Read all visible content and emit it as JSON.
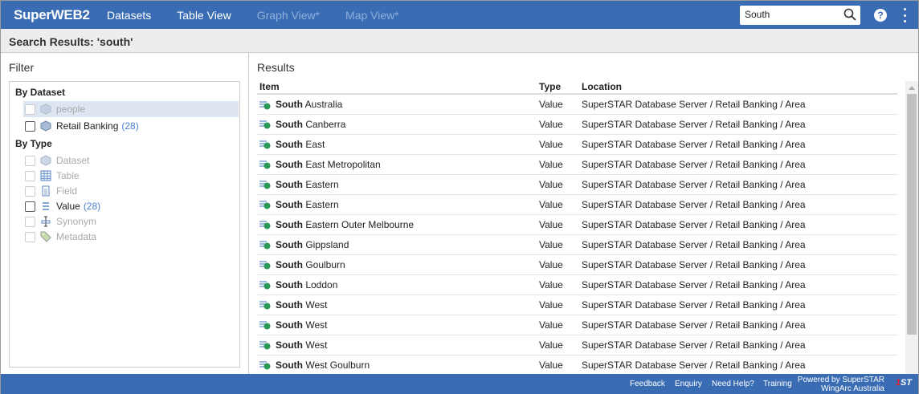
{
  "header": {
    "logo": "SuperWEB2",
    "nav": [
      {
        "label": "Datasets",
        "enabled": true
      },
      {
        "label": "Table View",
        "enabled": true
      },
      {
        "label": "Graph View*",
        "enabled": false
      },
      {
        "label": "Map View*",
        "enabled": false
      }
    ],
    "search_value": "South",
    "help_icon": "?"
  },
  "subheader": {
    "title": "Search Results: 'south'"
  },
  "filter": {
    "title": "Filter",
    "by_dataset": "By Dataset",
    "datasets": [
      {
        "label": "people",
        "count": "",
        "disabled": true
      },
      {
        "label": "Retail Banking",
        "count": "(28)",
        "disabled": false
      }
    ],
    "by_type": "By Type",
    "types": [
      {
        "label": "Dataset",
        "count": "",
        "icon": "cube-icon",
        "disabled": true
      },
      {
        "label": "Table",
        "count": "",
        "icon": "table-icon",
        "disabled": true
      },
      {
        "label": "Field",
        "count": "",
        "icon": "field-icon",
        "disabled": true
      },
      {
        "label": "Value",
        "count": "(28)",
        "icon": "value-icon",
        "disabled": false
      },
      {
        "label": "Synonym",
        "count": "",
        "icon": "synonym-icon",
        "disabled": true
      },
      {
        "label": "Metadata",
        "count": "",
        "icon": "tag-icon",
        "disabled": true
      }
    ]
  },
  "results": {
    "title": "Results",
    "columns": [
      "Item",
      "Type",
      "Location"
    ],
    "rows": [
      {
        "bold": "South",
        "rest": " Australia",
        "type": "Value",
        "location": "SuperSTAR Database Server / Retail Banking / Area"
      },
      {
        "bold": "South",
        "rest": " Canberra",
        "type": "Value",
        "location": "SuperSTAR Database Server / Retail Banking / Area"
      },
      {
        "bold": "South",
        "rest": " East",
        "type": "Value",
        "location": "SuperSTAR Database Server / Retail Banking / Area"
      },
      {
        "bold": "South",
        "rest": " East Metropolitan",
        "type": "Value",
        "location": "SuperSTAR Database Server / Retail Banking / Area"
      },
      {
        "bold": "South",
        "rest": " Eastern",
        "type": "Value",
        "location": "SuperSTAR Database Server / Retail Banking / Area"
      },
      {
        "bold": "South",
        "rest": " Eastern",
        "type": "Value",
        "location": "SuperSTAR Database Server / Retail Banking / Area"
      },
      {
        "bold": "South",
        "rest": " Eastern Outer Melbourne",
        "type": "Value",
        "location": "SuperSTAR Database Server / Retail Banking / Area"
      },
      {
        "bold": "South",
        "rest": " Gippsland",
        "type": "Value",
        "location": "SuperSTAR Database Server / Retail Banking / Area"
      },
      {
        "bold": "South",
        "rest": " Goulburn",
        "type": "Value",
        "location": "SuperSTAR Database Server / Retail Banking / Area"
      },
      {
        "bold": "South",
        "rest": " Loddon",
        "type": "Value",
        "location": "SuperSTAR Database Server / Retail Banking / Area"
      },
      {
        "bold": "South",
        "rest": " West",
        "type": "Value",
        "location": "SuperSTAR Database Server / Retail Banking / Area"
      },
      {
        "bold": "South",
        "rest": " West",
        "type": "Value",
        "location": "SuperSTAR Database Server / Retail Banking / Area"
      },
      {
        "bold": "South",
        "rest": " West",
        "type": "Value",
        "location": "SuperSTAR Database Server / Retail Banking / Area"
      },
      {
        "bold": "South",
        "rest": " West Goulburn",
        "type": "Value",
        "location": "SuperSTAR Database Server / Retail Banking / Area"
      }
    ]
  },
  "footer": {
    "links": [
      "Feedback",
      "Enquiry",
      "Need Help?",
      "Training"
    ],
    "powered_line1": "Powered by SuperSTAR",
    "powered_line2": "WingArc Australia",
    "logo_text": "1ST"
  },
  "colors": {
    "brand": "#3a6cb3",
    "count": "#4a7fd0"
  }
}
